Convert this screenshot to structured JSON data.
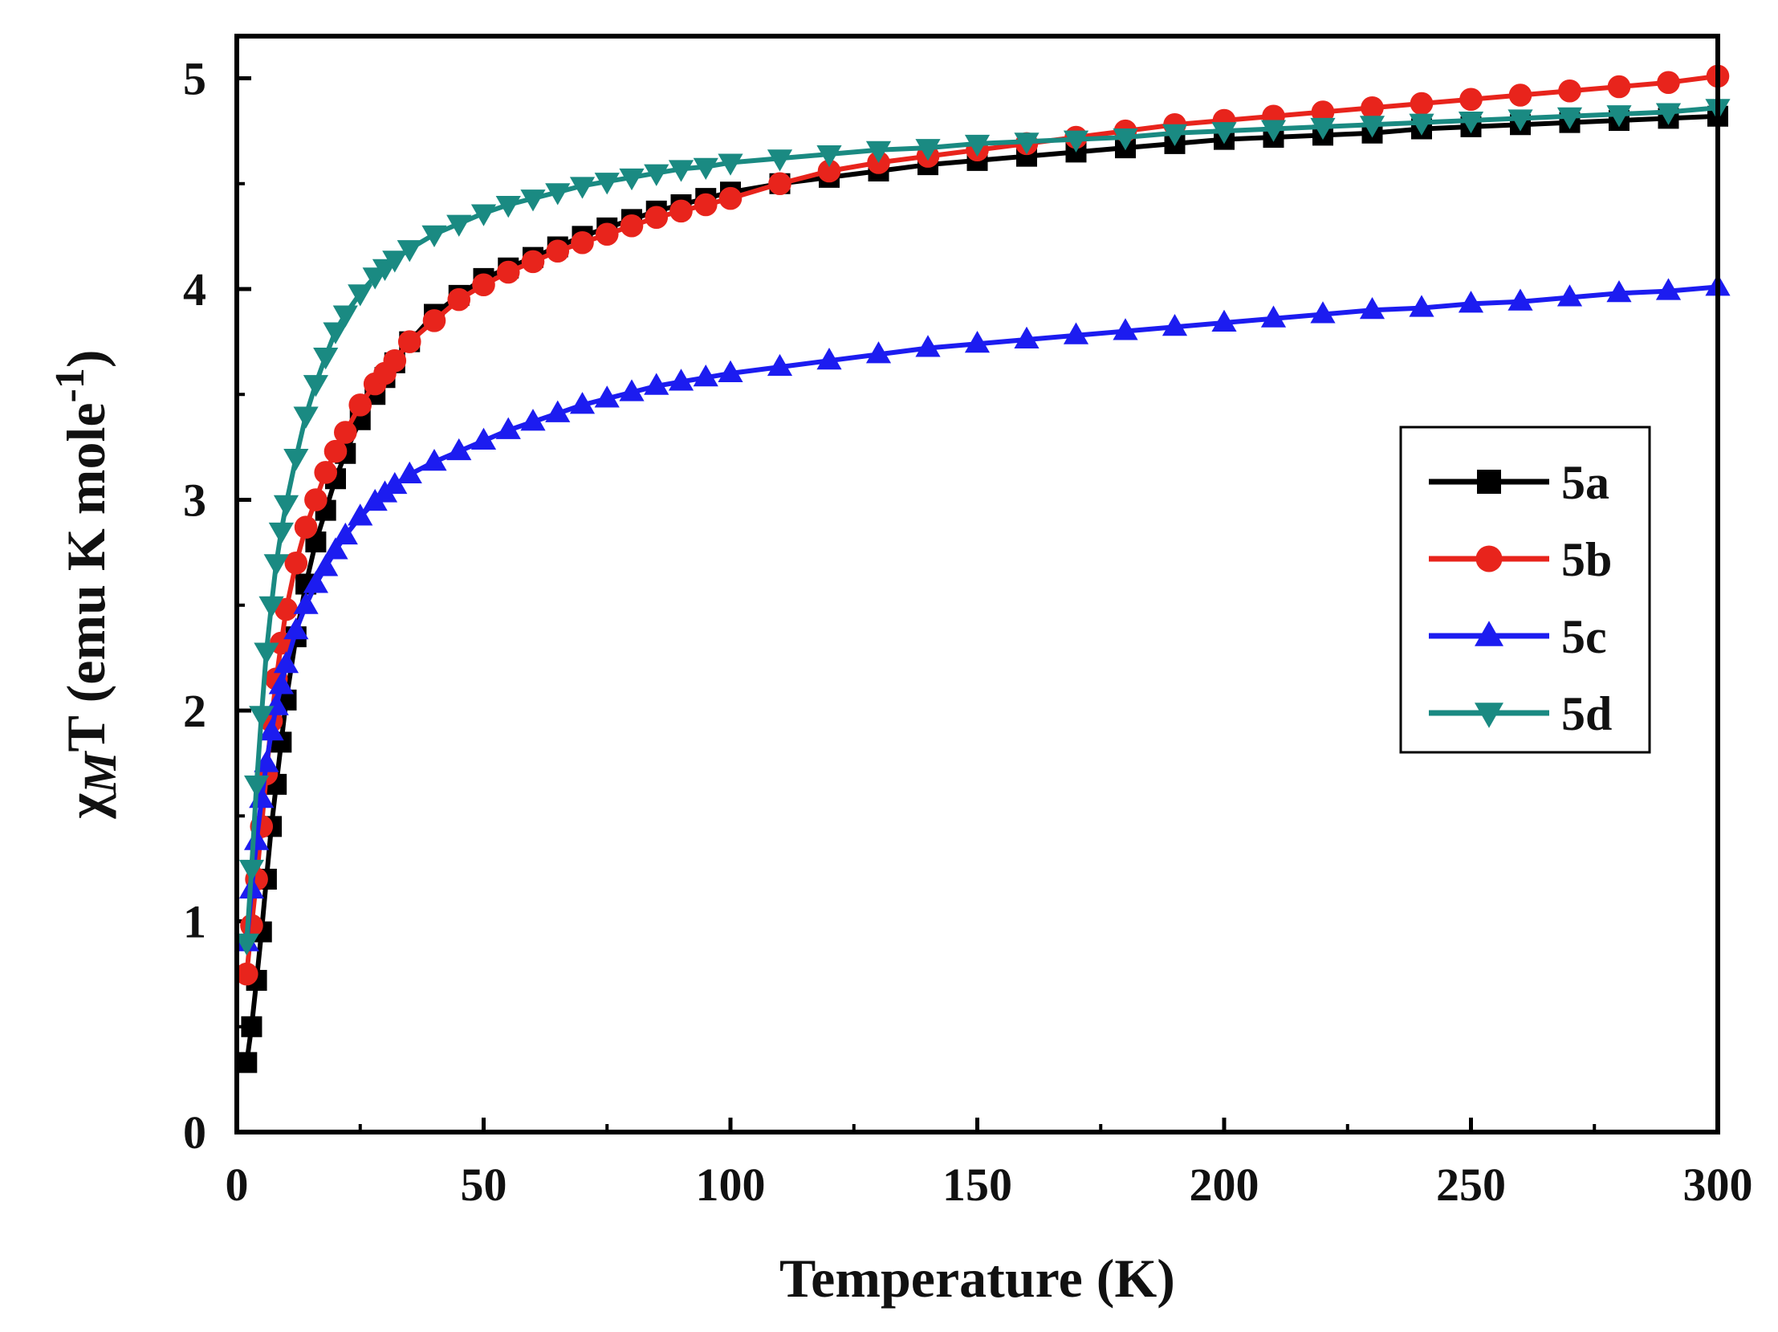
{
  "chart_data": {
    "type": "line",
    "title": "",
    "xlabel": "Temperature (K)",
    "ylabel": {
      "symbol": "χ",
      "subscript": "M",
      "rest": "T (emu K mole",
      "superscript": "-1",
      "close": ")"
    },
    "xlim": [
      0,
      300
    ],
    "ylim": [
      0,
      5.2
    ],
    "xticks": [
      0,
      50,
      100,
      150,
      200,
      250,
      300
    ],
    "yticks": [
      0,
      1,
      2,
      3,
      4,
      5
    ],
    "legend_position": "right",
    "series": [
      {
        "name": "5a",
        "color": "#000000",
        "marker": "square",
        "x": [
          2,
          3,
          4,
          5,
          6,
          7,
          8,
          9,
          10,
          12,
          14,
          16,
          18,
          20,
          22,
          25,
          28,
          30,
          32,
          35,
          40,
          45,
          50,
          55,
          60,
          65,
          70,
          75,
          80,
          85,
          90,
          95,
          100,
          110,
          120,
          130,
          140,
          150,
          160,
          170,
          180,
          190,
          200,
          210,
          220,
          230,
          240,
          250,
          260,
          270,
          280,
          290,
          300
        ],
        "y": [
          0.33,
          0.5,
          0.72,
          0.95,
          1.2,
          1.45,
          1.65,
          1.85,
          2.05,
          2.35,
          2.6,
          2.8,
          2.95,
          3.1,
          3.22,
          3.38,
          3.5,
          3.58,
          3.65,
          3.75,
          3.88,
          3.97,
          4.05,
          4.1,
          4.15,
          4.2,
          4.25,
          4.29,
          4.33,
          4.37,
          4.4,
          4.43,
          4.46,
          4.5,
          4.53,
          4.56,
          4.59,
          4.61,
          4.63,
          4.65,
          4.67,
          4.69,
          4.71,
          4.72,
          4.73,
          4.74,
          4.76,
          4.77,
          4.78,
          4.79,
          4.8,
          4.81,
          4.82
        ]
      },
      {
        "name": "5b",
        "color": "#e8241c",
        "marker": "circle",
        "x": [
          2,
          3,
          4,
          5,
          6,
          7,
          8,
          9,
          10,
          12,
          14,
          16,
          18,
          20,
          22,
          25,
          28,
          30,
          32,
          35,
          40,
          45,
          50,
          55,
          60,
          65,
          70,
          75,
          80,
          85,
          90,
          95,
          100,
          110,
          120,
          130,
          140,
          150,
          160,
          170,
          180,
          190,
          200,
          210,
          220,
          230,
          240,
          250,
          260,
          270,
          280,
          290,
          300
        ],
        "y": [
          0.75,
          0.98,
          1.2,
          1.45,
          1.7,
          1.95,
          2.15,
          2.32,
          2.48,
          2.7,
          2.87,
          3.0,
          3.13,
          3.23,
          3.32,
          3.45,
          3.55,
          3.6,
          3.66,
          3.75,
          3.85,
          3.95,
          4.02,
          4.08,
          4.13,
          4.18,
          4.22,
          4.26,
          4.3,
          4.34,
          4.37,
          4.4,
          4.43,
          4.5,
          4.56,
          4.6,
          4.63,
          4.66,
          4.69,
          4.72,
          4.75,
          4.78,
          4.8,
          4.82,
          4.84,
          4.86,
          4.88,
          4.9,
          4.92,
          4.94,
          4.96,
          4.98,
          5.01
        ]
      },
      {
        "name": "5c",
        "color": "#1c1cf0",
        "marker": "triangle-up",
        "x": [
          2,
          3,
          4,
          5,
          6,
          7,
          8,
          9,
          10,
          12,
          14,
          16,
          18,
          20,
          22,
          25,
          28,
          30,
          32,
          35,
          40,
          45,
          50,
          55,
          60,
          65,
          70,
          75,
          80,
          85,
          90,
          95,
          100,
          110,
          120,
          130,
          140,
          150,
          160,
          170,
          180,
          190,
          200,
          210,
          220,
          230,
          240,
          250,
          260,
          270,
          280,
          290,
          300
        ],
        "y": [
          0.9,
          1.15,
          1.38,
          1.58,
          1.75,
          1.9,
          2.02,
          2.12,
          2.22,
          2.38,
          2.5,
          2.6,
          2.68,
          2.76,
          2.83,
          2.92,
          2.99,
          3.03,
          3.07,
          3.12,
          3.18,
          3.23,
          3.28,
          3.33,
          3.37,
          3.41,
          3.45,
          3.48,
          3.51,
          3.54,
          3.56,
          3.58,
          3.6,
          3.63,
          3.66,
          3.69,
          3.72,
          3.74,
          3.76,
          3.78,
          3.8,
          3.82,
          3.84,
          3.86,
          3.88,
          3.9,
          3.91,
          3.93,
          3.94,
          3.96,
          3.98,
          3.99,
          4.01
        ]
      },
      {
        "name": "5d",
        "color": "#1a8a82",
        "marker": "triangle-down",
        "x": [
          2,
          3,
          4,
          5,
          6,
          7,
          8,
          9,
          10,
          12,
          14,
          16,
          18,
          20,
          22,
          25,
          28,
          30,
          32,
          35,
          40,
          45,
          50,
          55,
          60,
          65,
          70,
          75,
          80,
          85,
          90,
          95,
          100,
          110,
          120,
          130,
          140,
          150,
          160,
          170,
          180,
          190,
          200,
          210,
          220,
          230,
          240,
          250,
          260,
          270,
          280,
          290,
          300
        ],
        "y": [
          0.9,
          1.25,
          1.65,
          1.98,
          2.28,
          2.5,
          2.7,
          2.85,
          2.98,
          3.2,
          3.4,
          3.55,
          3.68,
          3.8,
          3.88,
          3.98,
          4.06,
          4.1,
          4.14,
          4.19,
          4.26,
          4.31,
          4.36,
          4.4,
          4.43,
          4.46,
          4.49,
          4.51,
          4.53,
          4.55,
          4.57,
          4.58,
          4.6,
          4.62,
          4.64,
          4.66,
          4.67,
          4.69,
          4.7,
          4.71,
          4.72,
          4.74,
          4.75,
          4.76,
          4.77,
          4.78,
          4.79,
          4.8,
          4.81,
          4.82,
          4.83,
          4.84,
          4.86
        ]
      }
    ]
  }
}
